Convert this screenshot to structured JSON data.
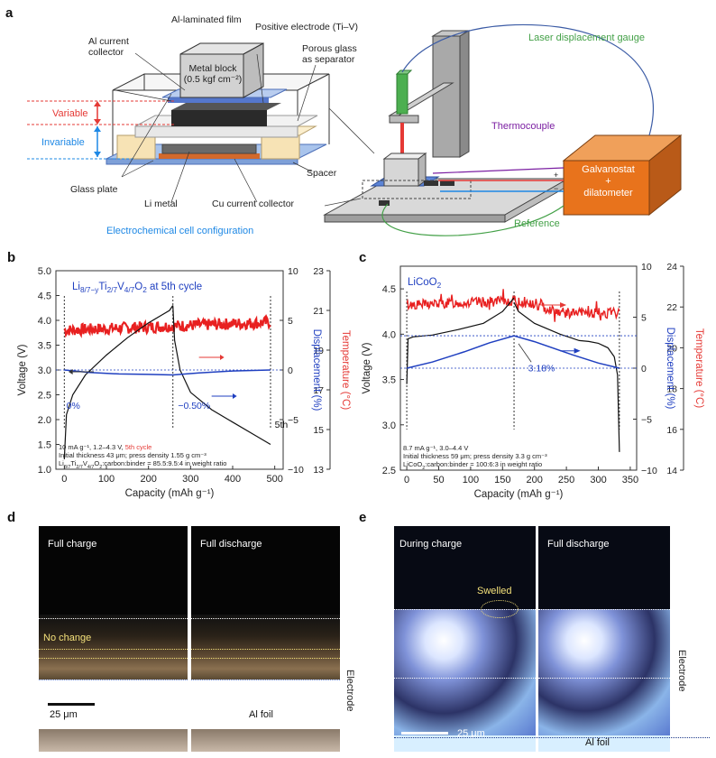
{
  "panel_labels": {
    "a": "a",
    "b": "b",
    "c": "c",
    "d": "d",
    "e": "e"
  },
  "panel_a": {
    "al_laminated_film": "Al-laminated film",
    "metal_block_line1": "Metal block",
    "metal_block_line2": "(0.5 kgf cm⁻²)",
    "al_current_collector_line1": "Al current",
    "al_current_collector_line2": "collector",
    "positive_electrode": "Positive electrode (Ti–V)",
    "porous_glass_line1": "Porous glass",
    "porous_glass_line2": "as separator",
    "variable": "Variable",
    "invariable": "Invariable",
    "spacer": "Spacer",
    "glass_plate": "Glass plate",
    "li_metal": "Li metal",
    "cu_current_collector": "Cu current collector",
    "cell_configuration": "Electrochemical cell configuration",
    "laser_gauge": "Laser displacement gauge",
    "thermocouple": "Thermocouple",
    "galvanostat_line1": "Galvanostat",
    "galvanostat_line2": "+",
    "galvanostat_line3": "dilatometer",
    "reference": "Reference",
    "plus": "+",
    "minus": "−",
    "colors": {
      "variable": "#e53935",
      "invariable": "#1e88e5",
      "laser": "#43a047",
      "thermo": "#7b1fa2",
      "box": "#e8731c"
    }
  },
  "chart_data": [
    {
      "type": "line",
      "panel": "b",
      "title_parts": [
        "Li",
        "8/7−y",
        "Ti",
        "2/7",
        "V",
        "4/7",
        "O",
        "2",
        " at 5th cycle"
      ],
      "xlabel": "Capacity (mAh g⁻¹)",
      "ylabel_left": "Voltage (V)",
      "ylabel_mid": "Displacement (%)",
      "ylabel_right": "Temperature (°C)",
      "xlim": [
        -20,
        520
      ],
      "xticks": [
        0,
        100,
        200,
        300,
        400,
        500
      ],
      "ylim_voltage": [
        1.0,
        5.0
      ],
      "yticks_voltage": [
        "1.0",
        "1.5",
        "2.0",
        "2.5",
        "3.0",
        "3.5",
        "4.0",
        "4.5",
        "5.0"
      ],
      "ylim_disp": [
        -10,
        10
      ],
      "yticks_disp": [
        "−10",
        "−5",
        "0",
        "5",
        "10"
      ],
      "ylim_temp": [
        13,
        23
      ],
      "yticks_temp": [
        "13",
        "15",
        "17",
        "19",
        "21",
        "23"
      ],
      "voltage_charge": {
        "x": [
          0,
          5,
          20,
          50,
          100,
          150,
          200,
          230,
          250,
          258
        ],
        "y": [
          1.2,
          2.1,
          2.5,
          2.9,
          3.3,
          3.65,
          3.95,
          4.1,
          4.2,
          4.3
        ]
      },
      "voltage_discharge": {
        "x": [
          258,
          262,
          275,
          300,
          350,
          400,
          450,
          490
        ],
        "y": [
          4.3,
          3.6,
          3.0,
          2.55,
          2.2,
          1.95,
          1.7,
          1.5
        ]
      },
      "displacement": {
        "x": [
          0,
          60,
          130,
          200,
          258,
          320,
          400,
          490
        ],
        "y": [
          0,
          -0.25,
          -0.4,
          -0.45,
          -0.5,
          -0.3,
          -0.1,
          0
        ]
      },
      "temperature": {
        "x": [
          0,
          490
        ],
        "y": [
          20.0,
          20.4
        ],
        "noise": 0.3
      },
      "markers": {
        "zero_x": 0,
        "min_x": 258,
        "end_x": 490
      },
      "annotations": {
        "a0": "0%",
        "a1": "−0.50%",
        "a2": "5th"
      },
      "notes": {
        "line1_main": "10 mA g⁻¹, 1.2–4.3 V, ",
        "line1_red": "5th cycle",
        "line2": "Initial thickness 43 μm; press density 1.55 g cm⁻³",
        "line3_parts": [
          "Li",
          "8/7",
          "Ti",
          "2/7",
          "V",
          "4/7",
          "O",
          "2",
          ":carbon:binder = 85.5:9.5:4 in weight ratio"
        ]
      }
    },
    {
      "type": "line",
      "panel": "c",
      "title_parts": [
        "LiCoO",
        "2"
      ],
      "xlabel": "Capacity (mAh g⁻¹)",
      "ylabel_left": "Voltage (V)",
      "ylabel_mid": "Displacement (%)",
      "ylabel_right": "Temperature (°C)",
      "xlim": [
        -10,
        360
      ],
      "xticks": [
        0,
        50,
        100,
        150,
        200,
        250,
        300,
        350
      ],
      "ylim_voltage": [
        2.5,
        4.75
      ],
      "yticks_voltage": [
        "2.5",
        "3.0",
        "3.5",
        "4.0",
        "4.5"
      ],
      "ylim_disp": [
        -10,
        10
      ],
      "yticks_disp": [
        "−10",
        "−5",
        "0",
        "5",
        "10"
      ],
      "ylim_temp": [
        14,
        24
      ],
      "yticks_temp": [
        "14",
        "16",
        "18",
        "20",
        "22",
        "24"
      ],
      "voltage_charge": {
        "x": [
          0,
          2,
          10,
          40,
          80,
          120,
          150,
          168
        ],
        "y": [
          3.45,
          3.95,
          3.97,
          3.99,
          4.05,
          4.12,
          4.25,
          4.4
        ]
      },
      "voltage_discharge": {
        "x": [
          168,
          175,
          200,
          240,
          270,
          285,
          300,
          315,
          325,
          330,
          333
        ],
        "y": [
          4.35,
          4.25,
          4.12,
          4.0,
          3.93,
          3.92,
          3.9,
          3.85,
          3.75,
          3.55,
          2.7
        ]
      },
      "displacement": {
        "x": [
          0,
          40,
          90,
          130,
          168,
          200,
          260,
          300,
          333
        ],
        "y": [
          0,
          0.6,
          1.6,
          2.5,
          3.18,
          2.6,
          1.3,
          0.5,
          0
        ]
      },
      "temperature": {
        "x": [
          0,
          170,
          250,
          333
        ],
        "y": [
          22.1,
          22.3,
          21.7,
          21.7
        ],
        "noise": 0.25
      },
      "markers": {
        "zero_x": 0,
        "max_x": 168,
        "end_x": 333
      },
      "annotations": {
        "a0": "3.18%"
      },
      "notes": {
        "line1": "8.7 mA g⁻¹, 3.0–4.4 V",
        "line2": "Initial thickness 59 μm; press density 3.3 g cm⁻³",
        "line3_parts": [
          "LiCoO",
          "2",
          ":carbon:binder = 100:6:3 in weight ratio"
        ]
      }
    }
  ],
  "panel_d": {
    "left_title": "Full charge",
    "right_title": "Full discharge",
    "no_change": "No change",
    "scale_bar": "25 μm",
    "al_foil": "Al foil",
    "electrode": "Electrode"
  },
  "panel_e": {
    "left_title": "During charge",
    "right_title": "Full discharge",
    "swelled": "Swelled",
    "scale_bar": "25 μm",
    "al_foil": "Al foil",
    "electrode": "Electrode"
  }
}
